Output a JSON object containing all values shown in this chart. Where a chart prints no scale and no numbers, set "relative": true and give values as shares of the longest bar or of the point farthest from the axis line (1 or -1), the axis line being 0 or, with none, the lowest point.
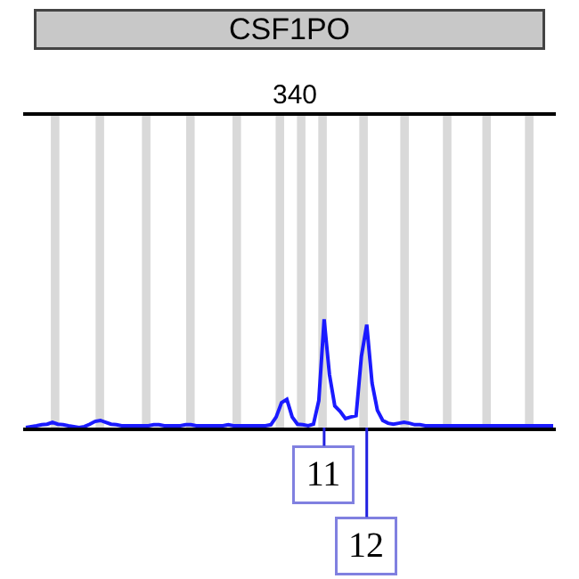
{
  "chart_data": {
    "type": "line",
    "title": "CSF1PO",
    "relative": true,
    "marker": "none",
    "line_style": "solid",
    "categories": [
      null,
      null,
      null,
      null,
      null,
      null,
      null,
      null,
      null,
      null,
      null,
      null,
      null,
      null,
      null,
      null,
      null,
      null,
      null,
      null,
      null,
      null,
      null,
      null,
      null,
      null,
      null,
      null,
      null,
      null,
      null,
      null,
      null,
      null,
      null,
      null,
      null,
      null,
      null,
      null,
      null,
      null,
      null,
      null,
      null,
      null,
      null,
      null,
      null,
      null,
      null,
      null,
      null,
      null,
      null,
      null,
      null,
      null,
      null,
      null,
      null,
      null,
      null,
      null,
      null,
      null,
      null,
      null,
      null,
      null,
      null,
      null,
      null,
      null,
      null,
      null,
      null,
      null,
      null,
      null,
      null,
      null,
      null,
      null,
      null,
      null,
      null,
      null,
      null,
      null,
      null,
      null,
      null,
      null,
      null,
      null,
      null,
      null,
      null,
      null
    ],
    "series": [
      {
        "color": "#1a1aff",
        "values": [
          0.0,
          0.009,
          0.017,
          0.026,
          0.031,
          0.049,
          0.031,
          0.026,
          0.017,
          0.009,
          0.0,
          0.009,
          0.031,
          0.057,
          0.066,
          0.049,
          0.031,
          0.026,
          0.017,
          0.017,
          0.017,
          0.017,
          0.017,
          0.017,
          0.026,
          0.026,
          0.017,
          0.017,
          0.017,
          0.017,
          0.026,
          0.026,
          0.017,
          0.017,
          0.017,
          0.017,
          0.017,
          0.017,
          0.026,
          0.017,
          0.017,
          0.017,
          0.017,
          0.017,
          0.017,
          0.017,
          0.026,
          0.098,
          0.23,
          0.26,
          0.098,
          0.031,
          0.026,
          0.017,
          0.031,
          0.25,
          1,
          0.49,
          0.2,
          0.15,
          0.083,
          0.098,
          0.11,
          0.66,
          0.95,
          0.41,
          0.16,
          0.066,
          0.04,
          0.031,
          0.04,
          0.049,
          0.04,
          0.026,
          0.026,
          0.017,
          0.017,
          0.017,
          0.017,
          0.017,
          0.017,
          0.017,
          0.017,
          0.017,
          0.017,
          0.017,
          0.017,
          0.017,
          0.017,
          0.017,
          0.017,
          0.017,
          0.017,
          0.017,
          0.017,
          0.017,
          0.017,
          0.017,
          0.017,
          0.017
        ]
      }
    ],
    "annotations": [
      "340",
      "11",
      "12"
    ]
  }
}
